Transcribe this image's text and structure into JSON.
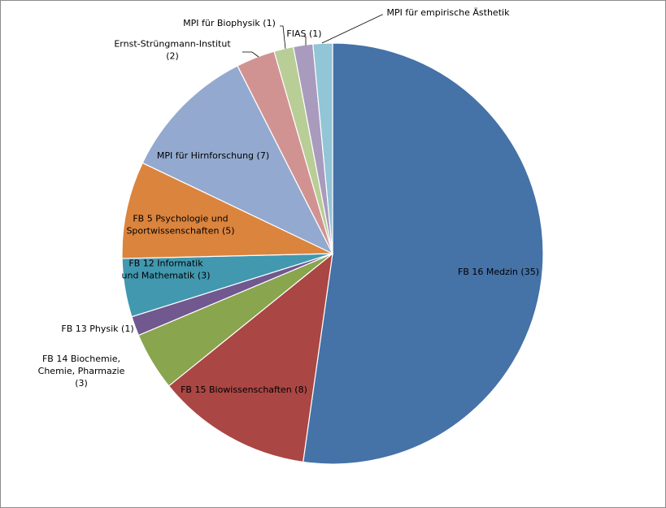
{
  "chart_data": {
    "type": "pie",
    "start": "top, clockwise",
    "slices": [
      {
        "label": "FB 16 Medzin (35)",
        "value": 35,
        "color": "#4572A7"
      },
      {
        "label": "FB 15 Biowissenschaften (8)",
        "value": 8,
        "color": "#AA4643"
      },
      {
        "label": "FB 14 Biochemie, Chemie, Pharmazie (3)",
        "value": 3,
        "color": "#89A54E"
      },
      {
        "label": "FB 13 Physik (1)",
        "value": 1,
        "color": "#71588F"
      },
      {
        "label": "FB 12 Informatik und Mathematik (3)",
        "value": 3,
        "color": "#4198AF"
      },
      {
        "label": "FB 5 Psychologie und Sportwissenschaften (5)",
        "value": 5,
        "color": "#DB843D"
      },
      {
        "label": "MPI für Hirnforschung (7)",
        "value": 7,
        "color": "#93A9CF"
      },
      {
        "label": "Ernst-Strüngmann-Institut (2)",
        "value": 2,
        "color": "#D19392"
      },
      {
        "label": "MPI für Biophysik (1)",
        "value": 1,
        "color": "#B9CD96"
      },
      {
        "label": "FIAS (1)",
        "value": 1,
        "color": "#A99BBD"
      },
      {
        "label": "MPI für empirische Ästhetik",
        "value": 1,
        "color": "#92C5D6"
      }
    ]
  }
}
